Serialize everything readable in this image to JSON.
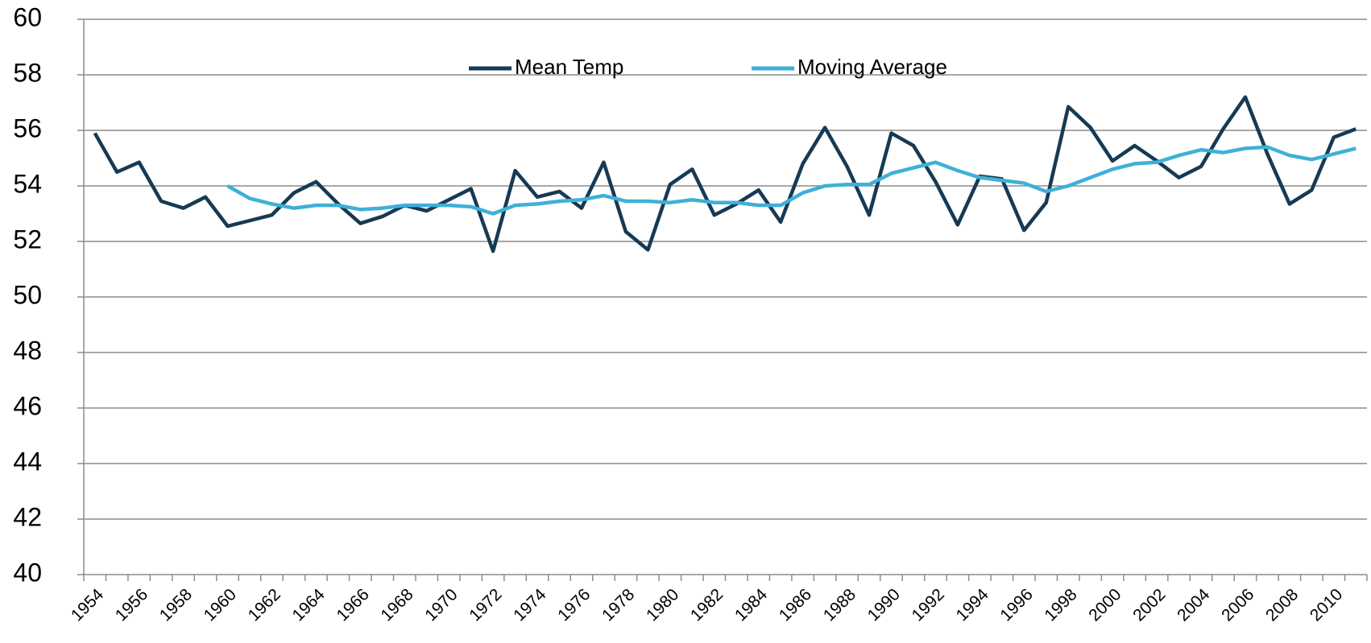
{
  "chart_data": {
    "type": "line",
    "categories": [
      "1954",
      null,
      "1956",
      null,
      "1958",
      null,
      "1960",
      null,
      "1962",
      null,
      "1964",
      null,
      "1966",
      null,
      "1968",
      null,
      "1970",
      null,
      "1972",
      null,
      "1974",
      null,
      "1976",
      null,
      "1978",
      null,
      "1980",
      null,
      "1982",
      null,
      "1984",
      null,
      "1986",
      null,
      "1988",
      null,
      "1990",
      null,
      "1992",
      null,
      "1994",
      null,
      "1996",
      null,
      "1998",
      null,
      "2000",
      null,
      "2002",
      null,
      "2004",
      null,
      "2006",
      null,
      "2008",
      null,
      "2010",
      null
    ],
    "series": [
      {
        "name": "Mean Temp",
        "color": "#163a54",
        "values": [
          55.9,
          54.5,
          54.85,
          53.45,
          53.2,
          53.6,
          52.55,
          52.75,
          52.95,
          53.75,
          54.15,
          53.35,
          52.65,
          52.9,
          53.3,
          53.1,
          53.5,
          53.9,
          51.65,
          54.55,
          53.6,
          53.8,
          53.2,
          54.85,
          52.35,
          51.7,
          54.05,
          54.6,
          52.95,
          53.35,
          53.85,
          52.7,
          54.8,
          56.1,
          54.7,
          52.95,
          55.9,
          55.45,
          54.15,
          52.6,
          54.35,
          54.25,
          52.4,
          53.4,
          56.85,
          56.1,
          54.9,
          55.45,
          54.9,
          54.3,
          54.7,
          56.05,
          57.2,
          55.15,
          53.35,
          53.85,
          55.75,
          56.05
        ]
      },
      {
        "name": "Moving Average",
        "color": "#3eb0d8",
        "values": [
          null,
          null,
          null,
          null,
          null,
          null,
          54.0,
          53.55,
          53.35,
          53.2,
          53.3,
          53.3,
          53.15,
          53.2,
          53.3,
          53.3,
          53.3,
          53.25,
          53.0,
          53.3,
          53.35,
          53.45,
          53.5,
          53.65,
          53.45,
          53.45,
          53.4,
          53.5,
          53.4,
          53.4,
          53.3,
          53.3,
          53.75,
          54.0,
          54.05,
          54.05,
          54.45,
          54.65,
          54.85,
          54.55,
          54.3,
          54.2,
          54.1,
          53.8,
          54.0,
          54.3,
          54.6,
          54.8,
          54.85,
          55.1,
          55.3,
          55.2,
          55.35,
          55.4,
          55.1,
          54.95,
          55.15,
          55.35
        ]
      }
    ],
    "ylim": [
      40,
      60
    ],
    "yticks": [
      40,
      42,
      44,
      46,
      48,
      50,
      52,
      54,
      56,
      58,
      60
    ],
    "grid": true,
    "legend": "top"
  }
}
